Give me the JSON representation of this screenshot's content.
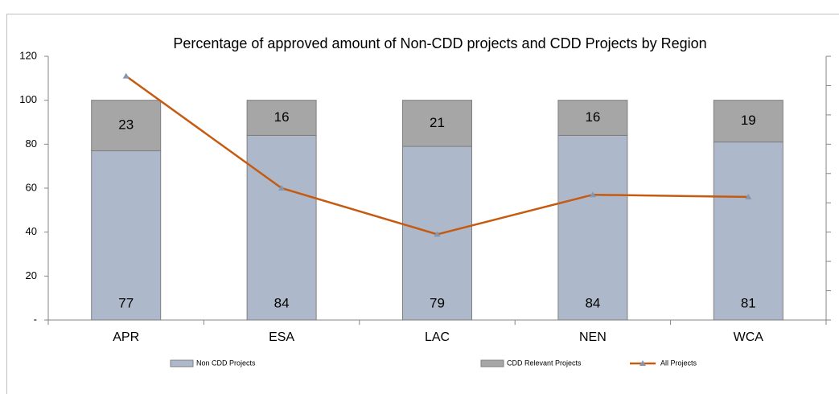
{
  "chart_data": {
    "type": "bar",
    "title": "Percentage of approved amount of Non-CDD projects and CDD Projects by Region",
    "categories": [
      "APR",
      "ESA",
      "LAC",
      "NEN",
      "WCA"
    ],
    "series": [
      {
        "name": "Non CDD Projects",
        "color": "#adb9ca",
        "values": [
          77,
          84,
          79,
          84,
          81
        ]
      },
      {
        "name": "CDD Relevant Projects",
        "color": "#a6a6a6",
        "values": [
          23,
          16,
          21,
          16,
          19
        ]
      },
      {
        "name": "All Projects",
        "type": "line",
        "color": "#c55a11",
        "values": [
          111,
          60,
          39,
          57,
          56
        ]
      }
    ],
    "ylim": [
      0,
      120
    ],
    "yticks": [
      {
        "value": 0,
        "label": "-"
      },
      20,
      40,
      60,
      80,
      100,
      120
    ],
    "stacked": true
  }
}
